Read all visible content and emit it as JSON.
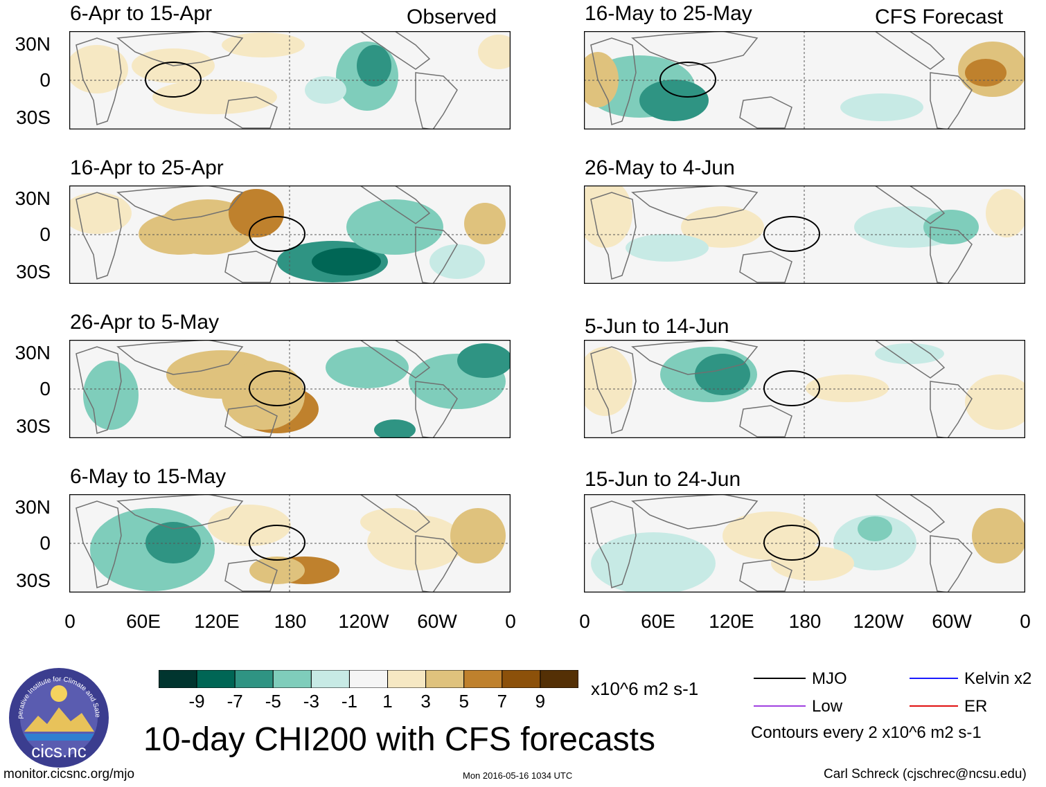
{
  "title": "10-day CHI200 with CFS forecasts",
  "labels": {
    "observed": "Observed",
    "forecast": "CFS Forecast"
  },
  "panels_left": [
    {
      "title": "6-Apr to 15-Apr"
    },
    {
      "title": "16-Apr to 25-Apr"
    },
    {
      "title": "26-Apr to 5-May"
    },
    {
      "title": "6-May to 15-May"
    }
  ],
  "panels_right": [
    {
      "title": "16-May to 25-May"
    },
    {
      "title": "26-May to 4-Jun"
    },
    {
      "title": "5-Jun to 14-Jun"
    },
    {
      "title": "15-Jun to 24-Jun"
    }
  ],
  "lat_ticks": [
    "30N",
    "0",
    "30S"
  ],
  "lon_ticks": [
    "0",
    "60E",
    "120E",
    "180",
    "120W",
    "60W",
    "0"
  ],
  "colorbar": {
    "colors": [
      "#01352f",
      "#006655",
      "#2f9483",
      "#7fcdbb",
      "#c7eae5",
      "#f5f5f5",
      "#f6e8c3",
      "#dfc27d",
      "#bf812d",
      "#8c510a",
      "#543005"
    ],
    "ticks": [
      "-9",
      "-7",
      "-5",
      "-3",
      "-1",
      "1",
      "3",
      "5",
      "7",
      "9"
    ],
    "units": "x10^6 m2 s-1"
  },
  "legend": {
    "items": [
      {
        "label": "MJO",
        "color": "#000000"
      },
      {
        "label": "Kelvin x2",
        "color": "#1a1aff"
      },
      {
        "label": "Low",
        "color": "#a040e0"
      },
      {
        "label": "ER",
        "color": "#e01010"
      }
    ],
    "note": "Contours every 2 x10^6 m2 s-1"
  },
  "logo": {
    "text": "cics.nc",
    "ring_text": "Cooperative Institute for Climate and Satellites"
  },
  "footer": {
    "url": "monitor.cicsnc.org/mjo",
    "timestamp": "Mon 2016-05-16 1034 UTC",
    "credit": "Carl Schreck (cjschrec@ncsu.edu)"
  }
}
